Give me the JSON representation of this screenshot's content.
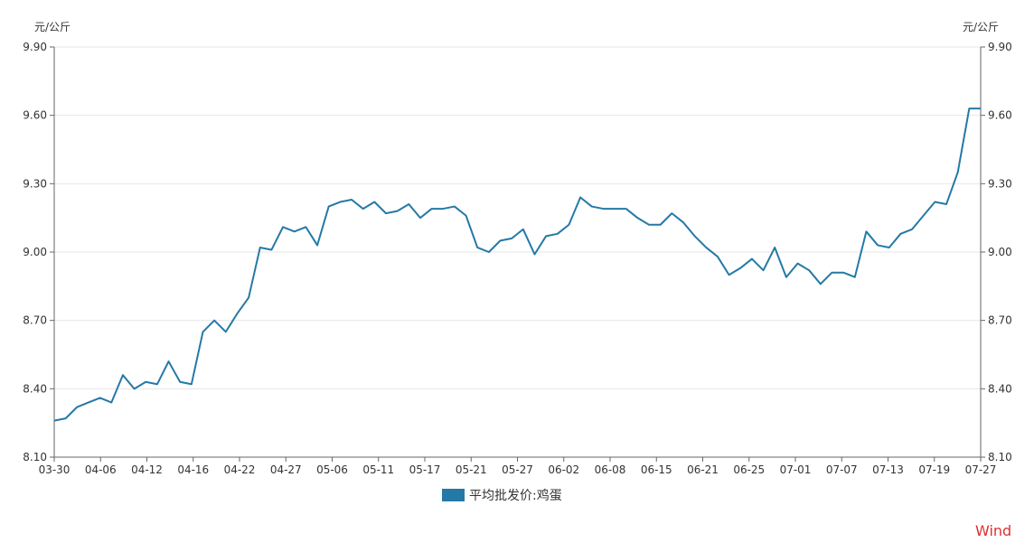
{
  "chart_data": {
    "type": "line",
    "title": "",
    "y_unit_left": "元/公斤",
    "y_unit_right": "元/公斤",
    "ylim": [
      8.1,
      9.9
    ],
    "yticks": [
      "8.10",
      "8.40",
      "8.70",
      "9.00",
      "9.30",
      "9.60",
      "9.90"
    ],
    "xtick_labels": [
      "03-30",
      "04-06",
      "04-12",
      "04-16",
      "04-22",
      "04-27",
      "05-06",
      "05-11",
      "05-17",
      "05-21",
      "05-27",
      "06-02",
      "06-08",
      "06-15",
      "06-21",
      "06-25",
      "07-01",
      "07-07",
      "07-13",
      "07-19",
      "07-27"
    ],
    "grid": "horizontal",
    "legend_position": "bottom",
    "series": [
      {
        "name": "平均批发价:鸡蛋",
        "color": "#2479a7",
        "values": [
          8.26,
          8.27,
          8.32,
          8.34,
          8.36,
          8.34,
          8.46,
          8.4,
          8.43,
          8.42,
          8.52,
          8.43,
          8.42,
          8.65,
          8.7,
          8.65,
          8.73,
          8.8,
          9.02,
          9.01,
          9.11,
          9.09,
          9.11,
          9.03,
          9.2,
          9.22,
          9.23,
          9.19,
          9.22,
          9.17,
          9.18,
          9.21,
          9.15,
          9.19,
          9.19,
          9.2,
          9.16,
          9.02,
          9.0,
          9.05,
          9.06,
          9.1,
          8.99,
          9.07,
          9.08,
          9.12,
          9.24,
          9.2,
          9.19,
          9.19,
          9.19,
          9.15,
          9.12,
          9.12,
          9.17,
          9.13,
          9.07,
          9.02,
          8.98,
          8.9,
          8.93,
          8.97,
          8.92,
          9.02,
          8.89,
          8.95,
          8.92,
          8.86,
          8.91,
          8.91,
          8.89,
          9.09,
          9.03,
          9.02,
          9.08,
          9.1,
          9.16,
          9.22,
          9.21,
          9.35,
          9.63,
          9.63
        ]
      }
    ]
  },
  "brand": {
    "text": "Wind",
    "color": "#e03030"
  }
}
